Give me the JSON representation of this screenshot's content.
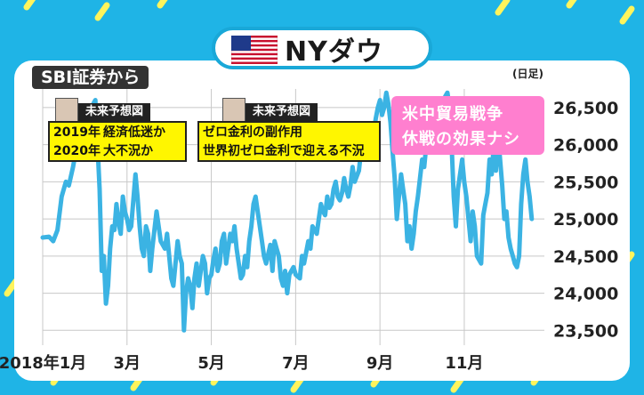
{
  "title": "NYダウ",
  "source_label": "SBI証券から",
  "unit_label": "(日足)",
  "flag_icon": "us-flag-icon",
  "annotation_left": {
    "header": "未来予想図",
    "line1_year": "2019年",
    "line1_text": "経済低迷か",
    "line2_year": "2020年",
    "line2_text": "大不況か"
  },
  "annotation_middle": {
    "header": "未来予想図",
    "line1": "ゼロ金利の副作用",
    "line2": "世界初ゼロ金利で迎える不況"
  },
  "annotation_right": {
    "line1": "米中貿易戦争",
    "line2": "休戦の効果ナシ"
  },
  "colors": {
    "background": "#1fb4e6",
    "line": "#3bb3e3",
    "annotation_yellow": "#fff600",
    "annotation_pink": "#ff7fcf",
    "stripes": "#fff45c"
  },
  "chart_data": {
    "type": "line",
    "x_tick_labels": [
      "2018年1月",
      "3月",
      "5月",
      "7月",
      "9月",
      "11月"
    ],
    "y_tick_labels": [
      "23,500",
      "24,000",
      "24,500",
      "25,000",
      "25,500",
      "26,000",
      "26,500"
    ],
    "ylim": [
      23300,
      26750
    ],
    "xlim": [
      0,
      11.9
    ],
    "grid": true,
    "series": [
      {
        "values": [
          [
            0.0,
            24750
          ],
          [
            0.15,
            24760
          ],
          [
            0.25,
            24700
          ],
          [
            0.35,
            24850
          ],
          [
            0.45,
            25300
          ],
          [
            0.55,
            25500
          ],
          [
            0.62,
            25450
          ],
          [
            0.72,
            25700
          ],
          [
            0.8,
            25950
          ],
          [
            0.9,
            26050
          ],
          [
            1.0,
            26200
          ],
          [
            1.1,
            26300
          ],
          [
            1.2,
            26550
          ],
          [
            1.25,
            26600
          ],
          [
            1.3,
            26000
          ],
          [
            1.35,
            25400
          ],
          [
            1.4,
            24300
          ],
          [
            1.45,
            24500
          ],
          [
            1.5,
            23860
          ],
          [
            1.55,
            24100
          ],
          [
            1.6,
            24600
          ],
          [
            1.65,
            24900
          ],
          [
            1.7,
            24850
          ],
          [
            1.75,
            25200
          ],
          [
            1.8,
            24950
          ],
          [
            1.85,
            24800
          ],
          [
            1.9,
            25300
          ],
          [
            1.95,
            25100
          ],
          [
            2.0,
            25000
          ],
          [
            2.05,
            24850
          ],
          [
            2.1,
            24900
          ],
          [
            2.2,
            25600
          ],
          [
            2.25,
            25300
          ],
          [
            2.3,
            24900
          ],
          [
            2.35,
            24600
          ],
          [
            2.4,
            24500
          ],
          [
            2.45,
            24900
          ],
          [
            2.5,
            24800
          ],
          [
            2.55,
            24300
          ],
          [
            2.6,
            24600
          ],
          [
            2.7,
            25100
          ],
          [
            2.8,
            24700
          ],
          [
            2.9,
            24600
          ],
          [
            2.95,
            24800
          ],
          [
            3.0,
            24500
          ],
          [
            3.05,
            24200
          ],
          [
            3.1,
            24100
          ],
          [
            3.2,
            24700
          ],
          [
            3.25,
            24500
          ],
          [
            3.3,
            24400
          ],
          [
            3.35,
            23500
          ],
          [
            3.4,
            24000
          ],
          [
            3.45,
            24200
          ],
          [
            3.5,
            24100
          ],
          [
            3.55,
            23800
          ],
          [
            3.6,
            24200
          ],
          [
            3.65,
            24400
          ],
          [
            3.7,
            24100
          ],
          [
            3.75,
            24300
          ],
          [
            3.8,
            24500
          ],
          [
            3.85,
            24400
          ],
          [
            3.9,
            24000
          ],
          [
            3.95,
            24200
          ],
          [
            4.0,
            24250
          ],
          [
            4.05,
            24450
          ],
          [
            4.1,
            24600
          ],
          [
            4.15,
            24300
          ],
          [
            4.2,
            24400
          ],
          [
            4.25,
            24700
          ],
          [
            4.3,
            24800
          ],
          [
            4.35,
            24400
          ],
          [
            4.4,
            24600
          ],
          [
            4.45,
            24800
          ],
          [
            4.5,
            24700
          ],
          [
            4.55,
            24900
          ],
          [
            4.6,
            24600
          ],
          [
            4.65,
            24400
          ],
          [
            4.7,
            24200
          ],
          [
            4.75,
            24250
          ],
          [
            4.8,
            24500
          ],
          [
            4.85,
            24350
          ],
          [
            4.9,
            24700
          ],
          [
            4.95,
            24900
          ],
          [
            5.0,
            25200
          ],
          [
            5.05,
            25300
          ],
          [
            5.1,
            25100
          ],
          [
            5.15,
            24900
          ],
          [
            5.2,
            24700
          ],
          [
            5.25,
            24500
          ],
          [
            5.3,
            24400
          ],
          [
            5.4,
            24650
          ],
          [
            5.45,
            24300
          ],
          [
            5.5,
            24700
          ],
          [
            5.55,
            24600
          ],
          [
            5.6,
            24500
          ],
          [
            5.65,
            24200
          ],
          [
            5.7,
            24100
          ],
          [
            5.75,
            24300
          ],
          [
            5.8,
            24000
          ],
          [
            5.85,
            24250
          ],
          [
            5.9,
            24300
          ],
          [
            5.95,
            24350
          ],
          [
            6.0,
            24250
          ],
          [
            6.1,
            24200
          ],
          [
            6.15,
            24500
          ],
          [
            6.2,
            24400
          ],
          [
            6.3,
            24700
          ],
          [
            6.35,
            24600
          ],
          [
            6.4,
            24900
          ],
          [
            6.5,
            24800
          ],
          [
            6.55,
            25000
          ],
          [
            6.6,
            25200
          ],
          [
            6.65,
            25100
          ],
          [
            6.7,
            25050
          ],
          [
            6.75,
            25300
          ],
          [
            6.8,
            25150
          ],
          [
            6.85,
            25200
          ],
          [
            6.9,
            25400
          ],
          [
            6.95,
            25500
          ],
          [
            7.0,
            25300
          ],
          [
            7.05,
            25250
          ],
          [
            7.1,
            25350
          ],
          [
            7.15,
            25550
          ],
          [
            7.2,
            25400
          ],
          [
            7.25,
            25300
          ],
          [
            7.3,
            25450
          ],
          [
            7.35,
            25700
          ],
          [
            7.4,
            25500
          ],
          [
            7.5,
            25650
          ],
          [
            7.55,
            25900
          ],
          [
            7.6,
            25850
          ],
          [
            7.65,
            25950
          ],
          [
            7.7,
            26000
          ],
          [
            7.75,
            26200
          ],
          [
            7.8,
            26100
          ],
          [
            7.85,
            26150
          ],
          [
            7.9,
            26350
          ],
          [
            7.95,
            26500
          ],
          [
            8.0,
            26600
          ],
          [
            8.05,
            26400
          ],
          [
            8.1,
            26500
          ],
          [
            8.15,
            26700
          ],
          [
            8.2,
            26550
          ],
          [
            8.25,
            26300
          ],
          [
            8.3,
            25900
          ],
          [
            8.35,
            25550
          ],
          [
            8.4,
            25000
          ],
          [
            8.45,
            25300
          ],
          [
            8.5,
            25600
          ],
          [
            8.55,
            25400
          ],
          [
            8.6,
            25200
          ],
          [
            8.65,
            24700
          ],
          [
            8.7,
            24900
          ],
          [
            8.75,
            24600
          ],
          [
            8.8,
            24800
          ],
          [
            8.85,
            25100
          ],
          [
            8.9,
            25300
          ],
          [
            8.95,
            25550
          ],
          [
            9.0,
            25800
          ],
          [
            9.05,
            25700
          ],
          [
            9.1,
            26000
          ],
          [
            9.15,
            25900
          ],
          [
            9.2,
            26100
          ],
          [
            9.25,
            26250
          ],
          [
            9.3,
            26200
          ],
          [
            9.35,
            26300
          ],
          [
            9.4,
            26250
          ],
          [
            9.45,
            26300
          ],
          [
            9.5,
            26500
          ],
          [
            9.55,
            26650
          ],
          [
            9.6,
            26700
          ],
          [
            9.65,
            26500
          ],
          [
            9.7,
            26000
          ],
          [
            9.75,
            25300
          ],
          [
            9.8,
            24900
          ],
          [
            9.85,
            25400
          ],
          [
            9.9,
            25600
          ],
          [
            9.95,
            25800
          ],
          [
            10.0,
            25500
          ],
          [
            10.05,
            25300
          ],
          [
            10.1,
            25000
          ],
          [
            10.15,
            24700
          ],
          [
            10.2,
            25100
          ],
          [
            10.25,
            24900
          ],
          [
            10.3,
            24500
          ],
          [
            10.4,
            24400
          ],
          [
            10.45,
            25050
          ],
          [
            10.5,
            25200
          ],
          [
            10.55,
            25350
          ],
          [
            10.6,
            25800
          ],
          [
            10.65,
            25600
          ],
          [
            10.7,
            26000
          ],
          [
            10.75,
            25650
          ],
          [
            10.8,
            26150
          ],
          [
            10.85,
            25800
          ],
          [
            10.9,
            25450
          ],
          [
            10.95,
            25000
          ],
          [
            11.0,
            25100
          ],
          [
            11.05,
            24750
          ],
          [
            11.1,
            24600
          ],
          [
            11.15,
            24500
          ],
          [
            11.2,
            24400
          ],
          [
            11.25,
            24350
          ],
          [
            11.3,
            24500
          ],
          [
            11.35,
            25200
          ],
          [
            11.4,
            25600
          ],
          [
            11.45,
            25800
          ],
          [
            11.5,
            25500
          ],
          [
            11.55,
            25300
          ],
          [
            11.6,
            25000
          ]
        ]
      }
    ]
  }
}
